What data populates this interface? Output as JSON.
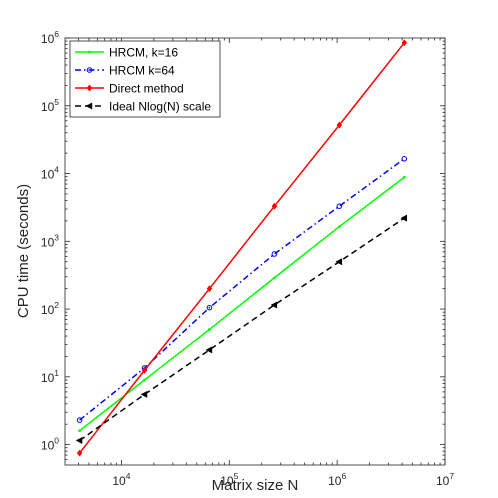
{
  "chart_data": {
    "type": "line",
    "title": "",
    "xlabel": "Matrix size N",
    "ylabel": "CPU time (seconds)",
    "xscale": "log",
    "yscale": "log",
    "xlim": [
      3000,
      10000000
    ],
    "ylim": [
      0.5,
      1000000
    ],
    "x_ticks": [
      {
        "value": 10000,
        "base": "10",
        "exp": "4"
      },
      {
        "value": 100000,
        "base": "10",
        "exp": "5"
      },
      {
        "value": 1000000,
        "base": "10",
        "exp": "6"
      },
      {
        "value": 10000000,
        "base": "10",
        "exp": "7"
      }
    ],
    "y_ticks": [
      {
        "value": 1,
        "base": "10",
        "exp": "0"
      },
      {
        "value": 10,
        "base": "10",
        "exp": "1"
      },
      {
        "value": 100,
        "base": "10",
        "exp": "2"
      },
      {
        "value": 1000,
        "base": "10",
        "exp": "3"
      },
      {
        "value": 10000,
        "base": "10",
        "exp": "4"
      },
      {
        "value": 100000,
        "base": "10",
        "exp": "5"
      },
      {
        "value": 1000000,
        "base": "10",
        "exp": "6"
      }
    ],
    "grid": false,
    "legend_position": "top-left",
    "x": [
      4096,
      16384,
      65536,
      262144,
      1048576,
      4194304
    ],
    "series": [
      {
        "name": "HRCM, k=16",
        "color": "#00ff00",
        "dash": "solid",
        "marker": "point",
        "values": [
          1.6,
          9,
          50,
          290,
          1650,
          8800
        ]
      },
      {
        "name": "HRCM k=64",
        "color": "#0000ff",
        "dash": "dashdot",
        "marker": "circle",
        "values": [
          2.3,
          13.5,
          105,
          650,
          3300,
          16500
        ]
      },
      {
        "name": "Direct method",
        "color": "#ff0000",
        "dash": "solid",
        "marker": "diamond",
        "values": [
          0.75,
          12.5,
          200,
          3300,
          52000,
          850000
        ]
      },
      {
        "name": "Ideal Nlog(N) scale",
        "color": "#000000",
        "dash": "dashed",
        "marker": "triangle-left",
        "values": [
          1.15,
          5.5,
          25,
          115,
          500,
          2200
        ]
      }
    ]
  }
}
